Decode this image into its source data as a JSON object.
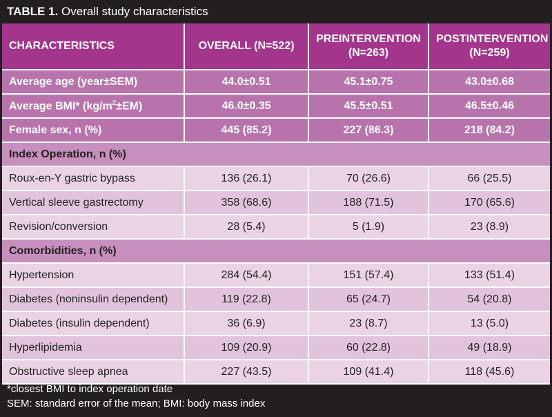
{
  "title": {
    "label": "TABLE 1.",
    "text": "Overall study characteristics"
  },
  "headers": {
    "characteristics": "CHARACTERISTICS",
    "overall": "OVERALL (N=522)",
    "pre_line1": "PREINTERVENTION",
    "pre_line2": "(N=263)",
    "post_line1": "POSTINTERVENTION",
    "post_line2": "(N=259)"
  },
  "stats": [
    {
      "label": "Average age (year±SEM)",
      "overall": "44.0±0.51",
      "pre": "45.1±0.75",
      "post": "43.0±0.68"
    },
    {
      "label_pre": "Average BMI* (kg/m",
      "label_sup": "2",
      "label_post": "±EM)",
      "overall": "46.0±0.35",
      "pre": "45.5±0.51",
      "post": "46.5±0.46"
    },
    {
      "label": "Female sex, n (%)",
      "overall": "445 (85.2)",
      "pre": "227 (86.3)",
      "post": "218 (84.2)"
    }
  ],
  "index_operation": {
    "section": "Index Operation, n (%)",
    "rows": [
      {
        "label": "Roux-en-Y gastric bypass",
        "overall": "136 (26.1)",
        "pre": "70 (26.6)",
        "post": "66 (25.5)"
      },
      {
        "label": "Vertical sleeve gastrectomy",
        "overall": "358 (68.6)",
        "pre": "188 (71.5)",
        "post": "170 (65.6)"
      },
      {
        "label": "Revision/conversion",
        "overall": "28 (5.4)",
        "pre": "5 (1.9)",
        "post": "23 (8.9)"
      }
    ]
  },
  "comorbidities": {
    "section": "Comorbidities, n (%)",
    "rows": [
      {
        "label": "Hypertension",
        "overall": "284 (54.4)",
        "pre": "151 (57.4)",
        "post": "133 (51.4)"
      },
      {
        "label": "Diabetes (noninsulin dependent)",
        "overall": "119 (22.8)",
        "pre": "65 (24.7)",
        "post": "54 (20.8)"
      },
      {
        "label": "Diabetes (insulin dependent)",
        "overall": "36 (6.9)",
        "pre": "23 (8.7)",
        "post": "13 (5.0)"
      },
      {
        "label": "Hyperlipidemia",
        "overall": "109 (20.9)",
        "pre": "60 (22.8)",
        "post": "49 (18.9)"
      },
      {
        "label": "Obstructive sleep apnea",
        "overall": "227 (43.5)",
        "pre": "109 (41.4)",
        "post": "118 (45.6)"
      }
    ]
  },
  "footnotes": [
    "*closest BMI to index operation date",
    "SEM: standard error of the mean; BMI: body mass index"
  ]
}
